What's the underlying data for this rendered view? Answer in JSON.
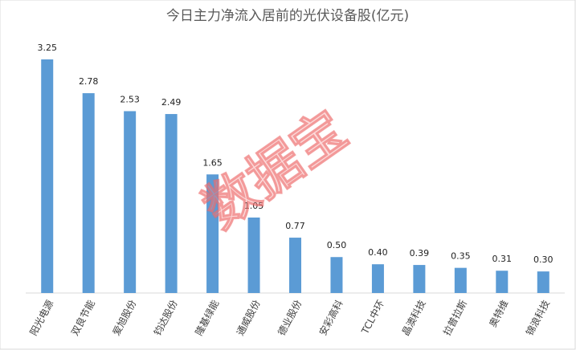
{
  "chart_data": {
    "type": "bar",
    "title": "今日主力净流入居前的光伏设备股(亿元)",
    "categories": [
      "阳光电源",
      "双良节能",
      "爱旭股份",
      "钧达股份",
      "隆基绿能",
      "通威股份",
      "德业股份",
      "安彩高科",
      "TCL中环",
      "晶澳科技",
      "拉普拉斯",
      "奥特维",
      "锦浪科技"
    ],
    "values": [
      3.25,
      2.78,
      2.53,
      2.49,
      1.65,
      1.05,
      0.77,
      0.5,
      0.4,
      0.39,
      0.35,
      0.31,
      0.3
    ],
    "value_labels": [
      "3.25",
      "2.78",
      "2.53",
      "2.49",
      "1.65",
      "1.05",
      "0.77",
      "0.50",
      "0.40",
      "0.39",
      "0.35",
      "0.31",
      "0.30"
    ],
    "color": "#5b9bd5",
    "watermark": "数据宝"
  }
}
